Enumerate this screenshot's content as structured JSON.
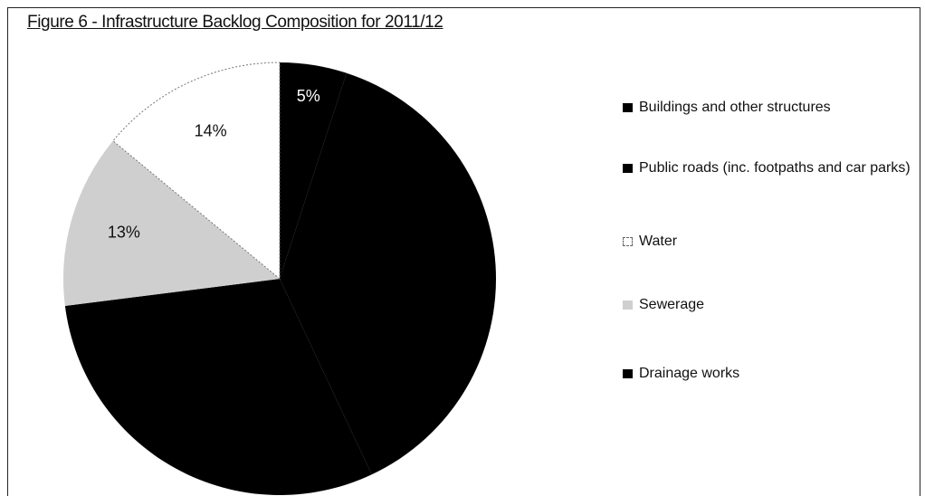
{
  "chart_data": {
    "type": "pie",
    "title": "Figure 6 - Infrastructure Backlog Composition for 2011/12",
    "categories": [
      "Buildings and other structures",
      "Public roads (inc. footpaths and car parks)",
      "Water",
      "Sewerage",
      "Drainage works"
    ],
    "values": [
      38,
      30,
      14,
      13,
      5
    ],
    "value_labels": [
      null,
      null,
      "14%",
      "13%",
      "5%"
    ],
    "colors": [
      "#000000",
      "#000000",
      "#ffffff",
      "#cfcfcf",
      "#000000"
    ]
  }
}
